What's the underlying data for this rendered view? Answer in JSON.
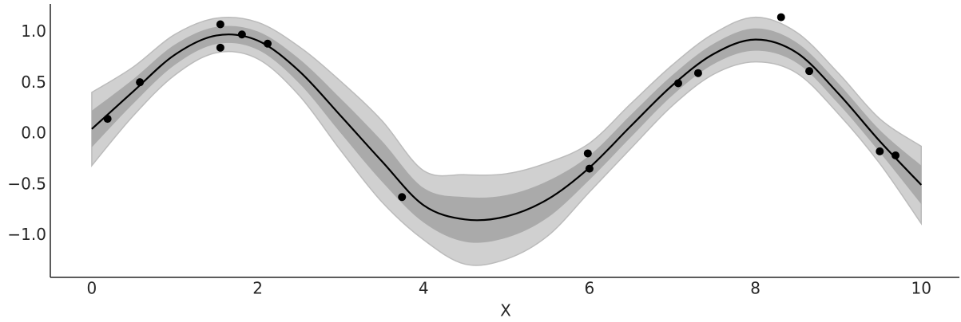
{
  "chart_data": {
    "type": "line",
    "xlabel": "X",
    "x": [
      0,
      0.5,
      1,
      1.5,
      2,
      2.5,
      3,
      3.5,
      4,
      4.5,
      5,
      5.5,
      6,
      6.5,
      7,
      7.5,
      8,
      8.5,
      9,
      9.5,
      10
    ],
    "values": [
      0.05,
      0.42,
      0.78,
      0.97,
      0.92,
      0.62,
      0.18,
      -0.27,
      -0.7,
      -0.84,
      -0.81,
      -0.64,
      -0.33,
      0.08,
      0.48,
      0.79,
      0.93,
      0.8,
      0.4,
      -0.07,
      -0.5
    ],
    "color": "#000000",
    "bands": [
      {
        "color": "#d0d0d0",
        "upper": [
          0.41,
          0.66,
          0.98,
          1.14,
          1.1,
          0.86,
          0.52,
          0.13,
          -0.36,
          -0.4,
          -0.39,
          -0.28,
          -0.09,
          0.3,
          0.68,
          0.99,
          1.15,
          1.0,
          0.6,
          0.15,
          -0.12
        ],
        "lower": [
          -0.31,
          0.18,
          0.58,
          0.8,
          0.74,
          0.38,
          -0.16,
          -0.67,
          -1.04,
          -1.28,
          -1.23,
          -1.0,
          -0.57,
          -0.14,
          0.28,
          0.59,
          0.71,
          0.6,
          0.2,
          -0.29,
          -0.88
        ]
      },
      {
        "color": "#aaaaaa",
        "upper": [
          0.23,
          0.54,
          0.88,
          1.055,
          1.01,
          0.74,
          0.35,
          -0.07,
          -0.53,
          -0.62,
          -0.6,
          -0.46,
          -0.21,
          0.19,
          0.58,
          0.89,
          1.04,
          0.9,
          0.5,
          0.04,
          -0.31
        ],
        "lower": [
          -0.13,
          0.3,
          0.68,
          0.885,
          0.83,
          0.5,
          0.01,
          -0.47,
          -0.87,
          -1.06,
          -1.02,
          -0.82,
          -0.45,
          -0.03,
          0.38,
          0.69,
          0.82,
          0.7,
          0.3,
          -0.18,
          -0.69
        ]
      }
    ],
    "scatter": {
      "color": "#000000",
      "x": [
        0.19,
        0.58,
        1.55,
        1.55,
        1.81,
        2.12,
        3.74,
        5.98,
        6.0,
        7.07,
        7.31,
        8.31,
        8.65,
        9.5,
        9.69
      ],
      "y": [
        0.15,
        0.51,
        1.08,
        0.85,
        0.98,
        0.89,
        -0.62,
        -0.19,
        -0.34,
        0.5,
        0.6,
        1.15,
        0.62,
        -0.17,
        -0.21
      ]
    },
    "xlim": [
      -0.5,
      10.46
    ],
    "ylim": [
      -1.41,
      1.28
    ],
    "xticks": [
      0,
      2,
      4,
      6,
      8,
      10
    ],
    "yticks": [
      {
        "value": -1,
        "label": "−1.0"
      },
      {
        "value": -0.5,
        "label": "−0.5"
      },
      {
        "value": 0,
        "label": "0.0"
      },
      {
        "value": 0.5,
        "label": "0.5"
      },
      {
        "value": 1,
        "label": "1.0"
      }
    ]
  }
}
